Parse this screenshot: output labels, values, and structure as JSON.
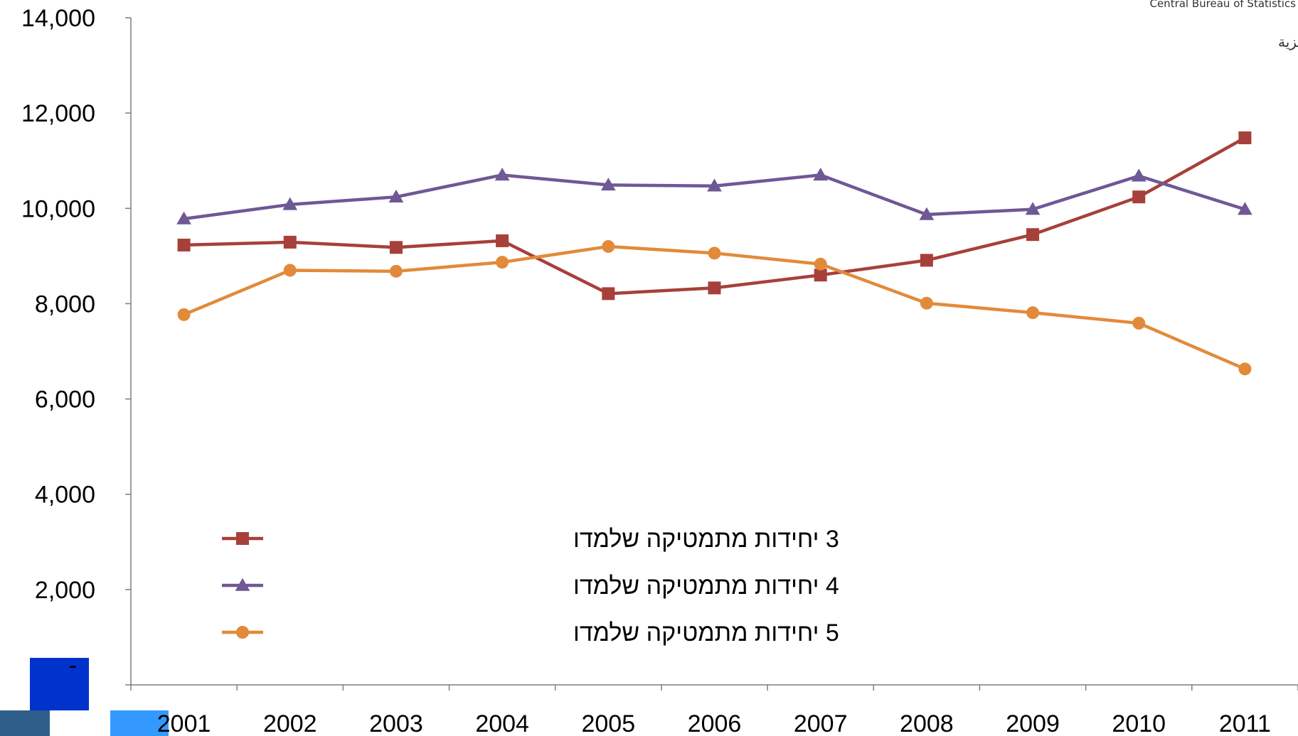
{
  "logo": {
    "english": "Central Bureau of Statistics",
    "arabic": "دائرة الإحصاء المركزية"
  },
  "zero_label": "-",
  "chart_data": {
    "type": "line",
    "title": "",
    "xlabel": "",
    "ylabel": "",
    "categories": [
      "2001",
      "2002",
      "2003",
      "2004",
      "2005",
      "2006",
      "2007",
      "2008",
      "2009",
      "2010",
      "2011"
    ],
    "ylim": [
      0,
      14000
    ],
    "yticks": [
      "-",
      "2,000",
      "4,000",
      "6,000",
      "8,000",
      "10,000",
      "12,000",
      "14,000"
    ],
    "grid": false,
    "legend_position": "bottom-left",
    "series": [
      {
        "name": "3 יחידות מתמטיקה שלמדו",
        "color": "#A7403A",
        "marker": "square",
        "values": [
          9230,
          9290,
          9180,
          9320,
          8210,
          8330,
          8600,
          8910,
          9450,
          10240,
          11480
        ]
      },
      {
        "name": "4 יחידות מתמטיקה שלמדו",
        "color": "#6F5896",
        "marker": "triangle",
        "values": [
          9780,
          10080,
          10240,
          10700,
          10490,
          10470,
          10700,
          9870,
          9980,
          10680,
          9980
        ]
      },
      {
        "name": "5 יחידות מתמטיקה שלמדו",
        "color": "#E28A3A",
        "marker": "circle",
        "values": [
          7770,
          8700,
          8680,
          8870,
          9200,
          9060,
          8830,
          8010,
          7810,
          7590,
          6630
        ]
      }
    ]
  }
}
